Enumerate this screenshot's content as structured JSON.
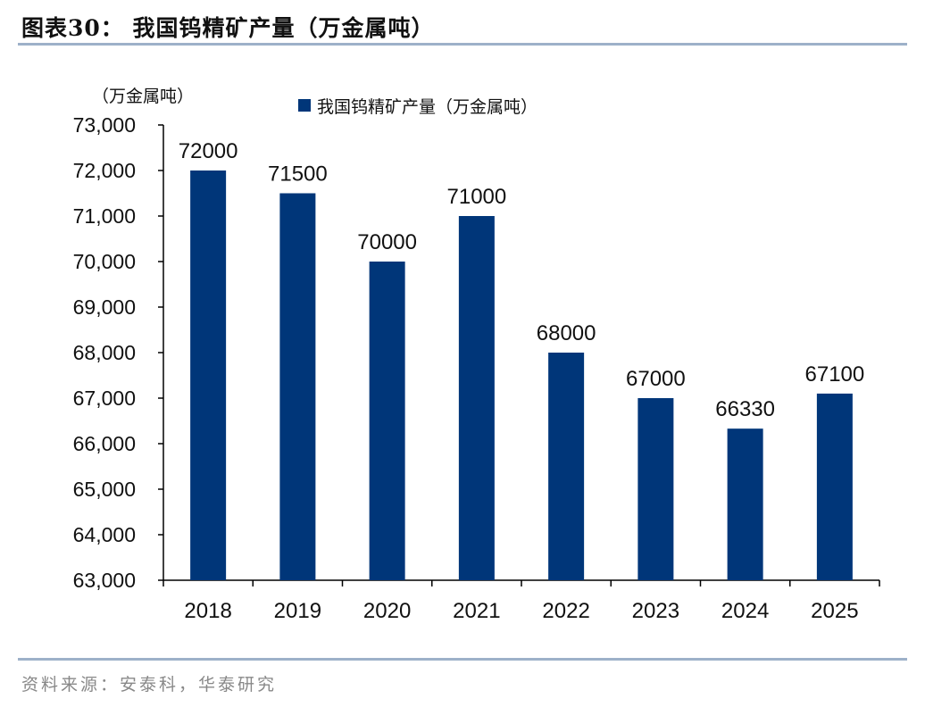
{
  "title": "图表30：  我国钨精矿产量（万金属吨）",
  "source": "资料来源：安泰科，华泰研究",
  "colors": {
    "bar": "#003679",
    "rule": "#9db1c9"
  },
  "chart_data": {
    "type": "bar",
    "title": "",
    "ylabel": "（万金属吨）",
    "xlabel": "",
    "legend": {
      "position": "top",
      "entries": [
        "我国钨精矿产量（万金属吨）"
      ]
    },
    "ylim": [
      63000,
      73000
    ],
    "yticks": [
      63000,
      64000,
      65000,
      66000,
      67000,
      68000,
      69000,
      70000,
      71000,
      72000,
      73000
    ],
    "ytick_labels": [
      "63,000",
      "64,000",
      "65,000",
      "66,000",
      "67,000",
      "68,000",
      "69,000",
      "70,000",
      "71,000",
      "72,000",
      "73,000"
    ],
    "grid": false,
    "categories": [
      "2018",
      "2019",
      "2020",
      "2021",
      "2022",
      "2023",
      "2024",
      "2025"
    ],
    "series": [
      {
        "name": "我国钨精矿产量（万金属吨）",
        "values": [
          72000,
          71500,
          70000,
          71000,
          68000,
          67000,
          66330,
          67100
        ]
      }
    ],
    "data_labels": [
      "72000",
      "71500",
      "70000",
      "71000",
      "68000",
      "67000",
      "66330",
      "67100"
    ]
  }
}
